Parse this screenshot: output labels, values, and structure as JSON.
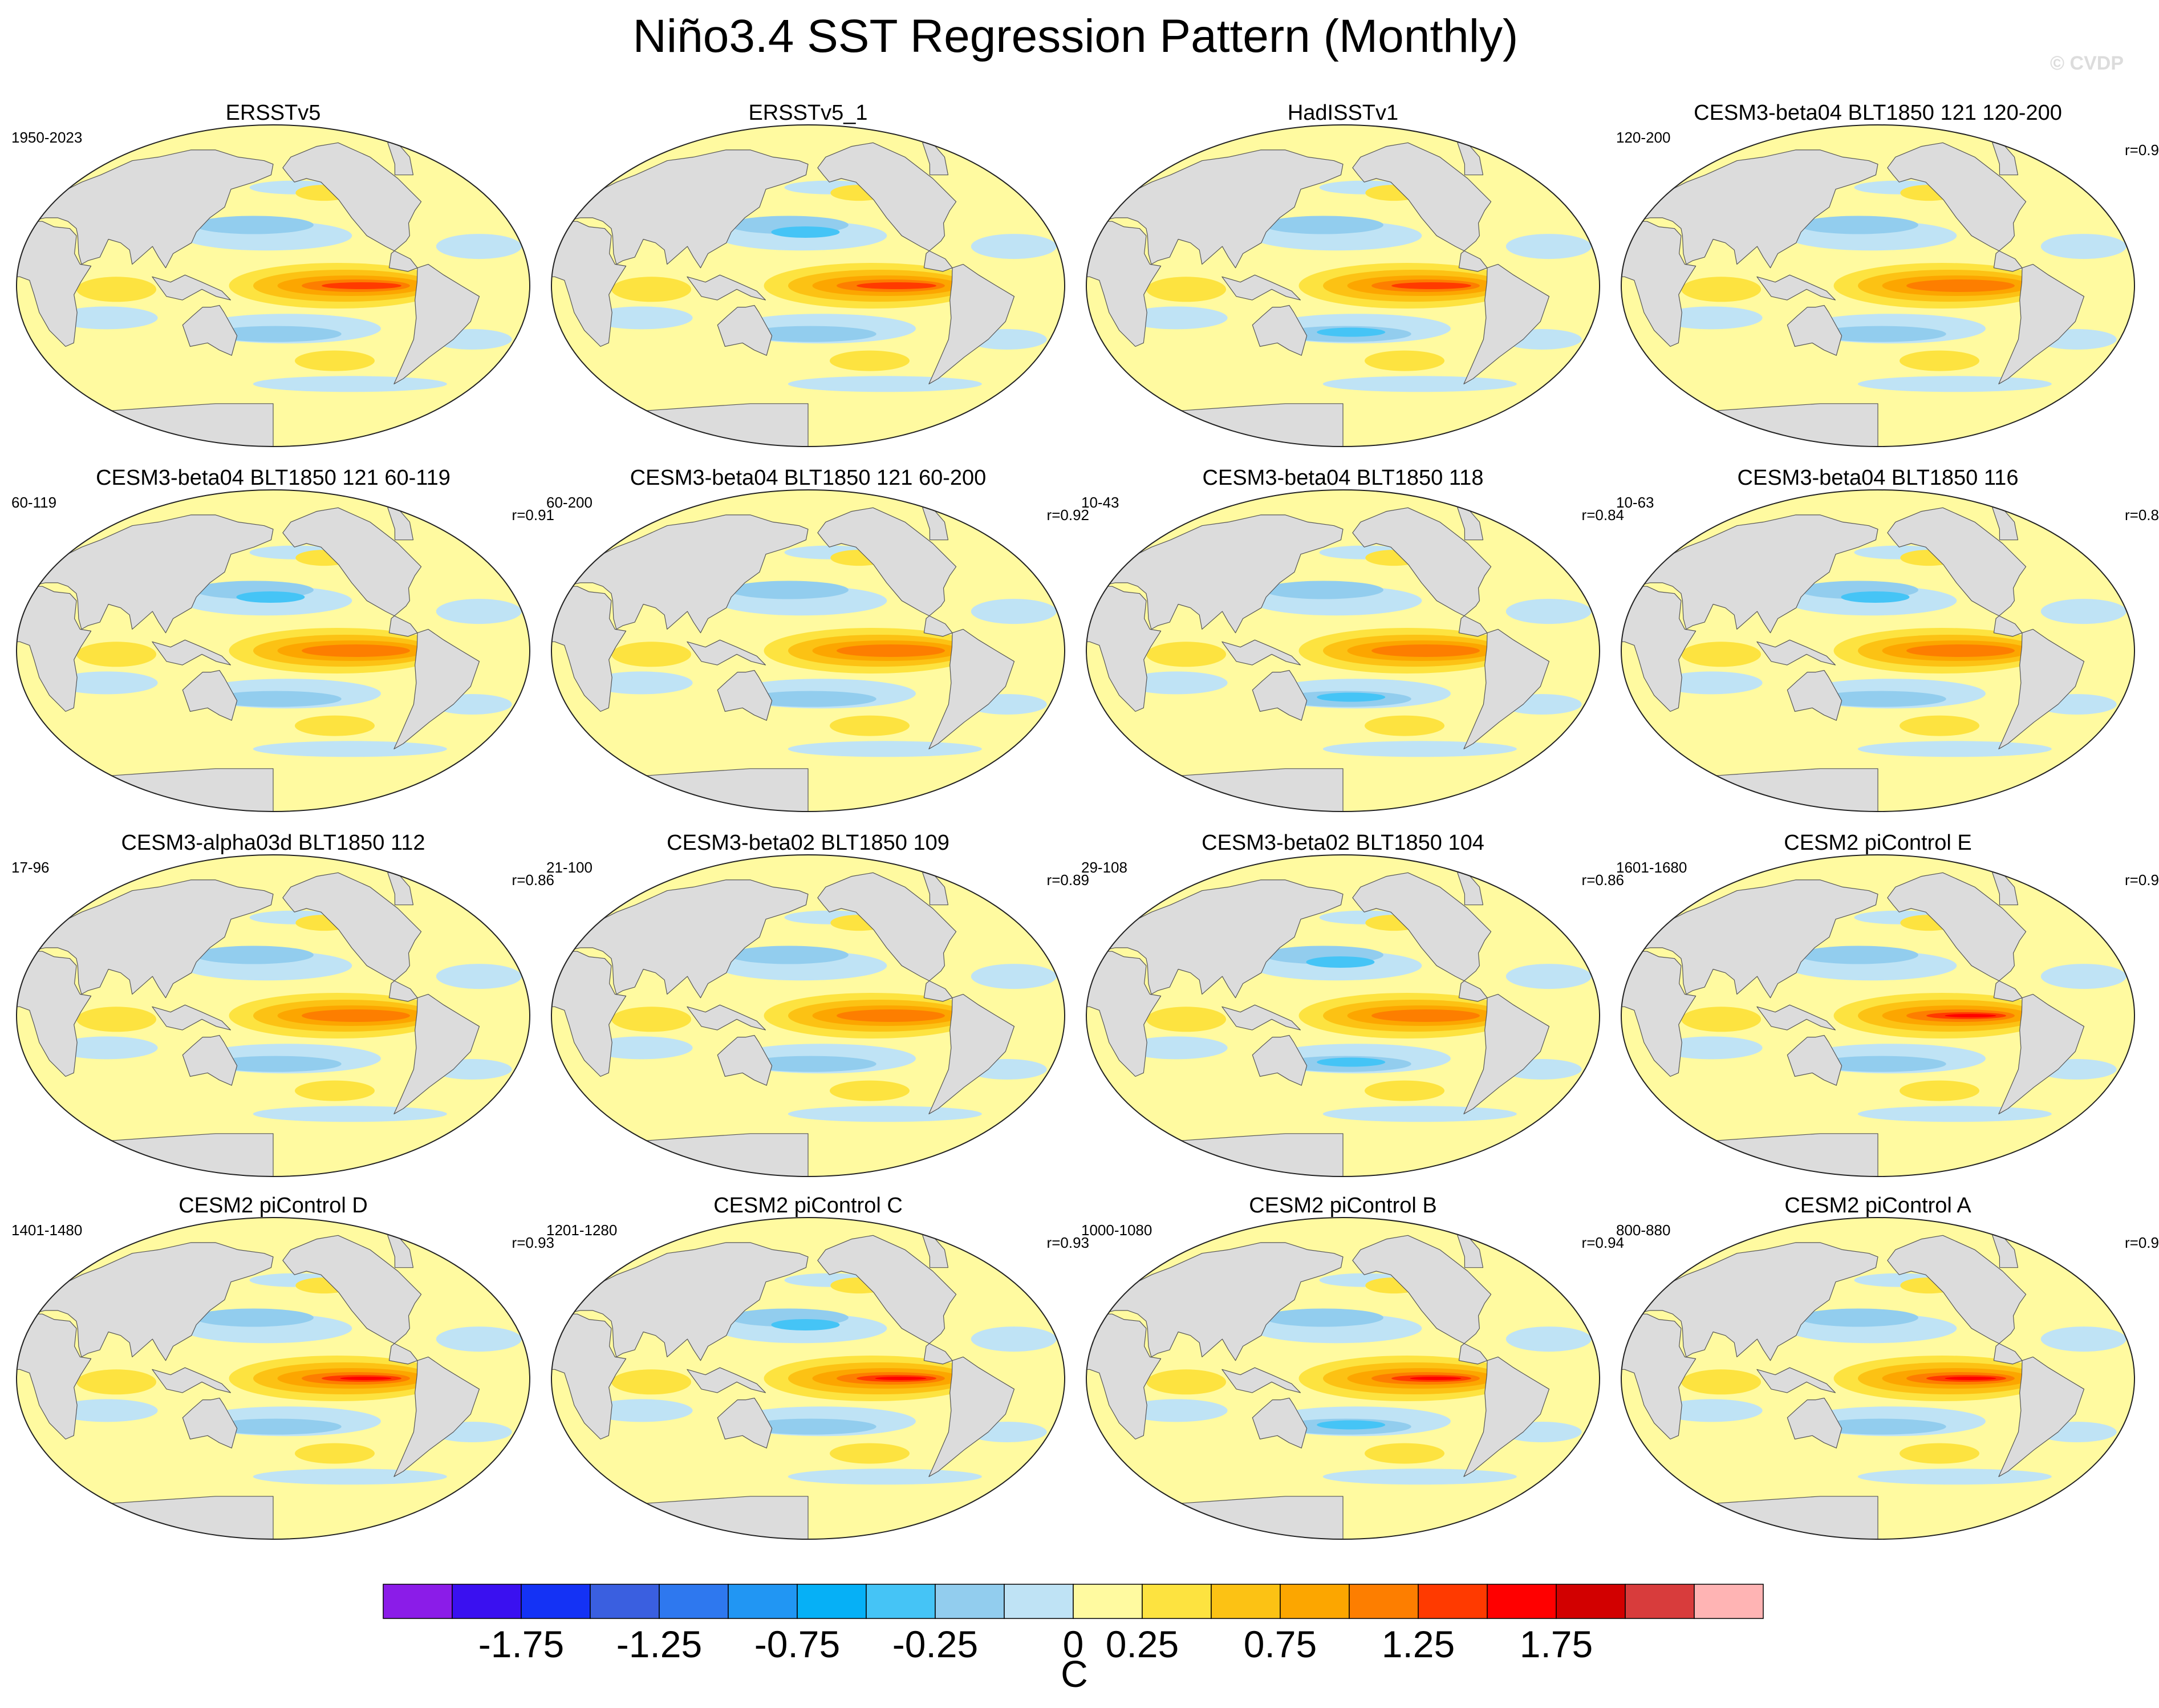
{
  "title": "Niño3.4 SST Regression Pattern (Monthly)",
  "copyright": "© CVDP",
  "chart_data": {
    "type": "contour-map-panels",
    "variable": "Niño3.4 SST regression",
    "panels": [
      {
        "name": "ERSSTv5",
        "period": "1950-2023",
        "r": ""
      },
      {
        "name": "ERSSTv5_1",
        "period": "",
        "r": ""
      },
      {
        "name": "HadISSTv1",
        "period": "",
        "r": ""
      },
      {
        "name": "CESM3-beta04 BLT1850 121 120-200",
        "period": "120-200",
        "r": "r=0.9"
      },
      {
        "name": "CESM3-beta04 BLT1850 121 60-119",
        "period": "60-119",
        "r": "r=0.91"
      },
      {
        "name": "CESM3-beta04 BLT1850 121 60-200",
        "period": "60-200",
        "r": "r=0.92"
      },
      {
        "name": "CESM3-beta04 BLT1850 118",
        "period": "10-43",
        "r": "r=0.84"
      },
      {
        "name": "CESM3-beta04 BLT1850 116",
        "period": "10-63",
        "r": "r=0.8"
      },
      {
        "name": "CESM3-alpha03d BLT1850 112",
        "period": "17-96",
        "r": "r=0.86"
      },
      {
        "name": "CESM3-beta02 BLT1850 109",
        "period": "21-100",
        "r": "r=0.89"
      },
      {
        "name": "CESM3-beta02 BLT1850 104",
        "period": "29-108",
        "r": "r=0.86"
      },
      {
        "name": "CESM2 piControl E",
        "period": "1601-1680",
        "r": "r=0.9"
      },
      {
        "name": "CESM2 piControl D",
        "period": "1401-1480",
        "r": "r=0.93"
      },
      {
        "name": "CESM2 piControl C",
        "period": "1201-1280",
        "r": "r=0.93"
      },
      {
        "name": "CESM2 piControl B",
        "period": "1000-1080",
        "r": "r=0.94"
      },
      {
        "name": "CESM2 piControl A",
        "period": "800-880",
        "r": "r=0.9"
      }
    ],
    "colorbar": {
      "unit": "C",
      "tick_labels": [
        "-1.75",
        "-1.25",
        "-0.75",
        "-0.25",
        "0",
        "0.25",
        "0.75",
        "1.25",
        "1.75"
      ],
      "colors": [
        "#8b1ce8",
        "#3a10f0",
        "#1432f5",
        "#3a5fe0",
        "#2e78ef",
        "#2196f3",
        "#06b0f6",
        "#45c4f6",
        "#92cdee",
        "#bfe3f5",
        "#fffaa0",
        "#fde340",
        "#fcc214",
        "#fca600",
        "#fd7e00",
        "#ff3a00",
        "#ff0000",
        "#d20000",
        "#d83c3c",
        "#ffb4b4"
      ]
    }
  }
}
